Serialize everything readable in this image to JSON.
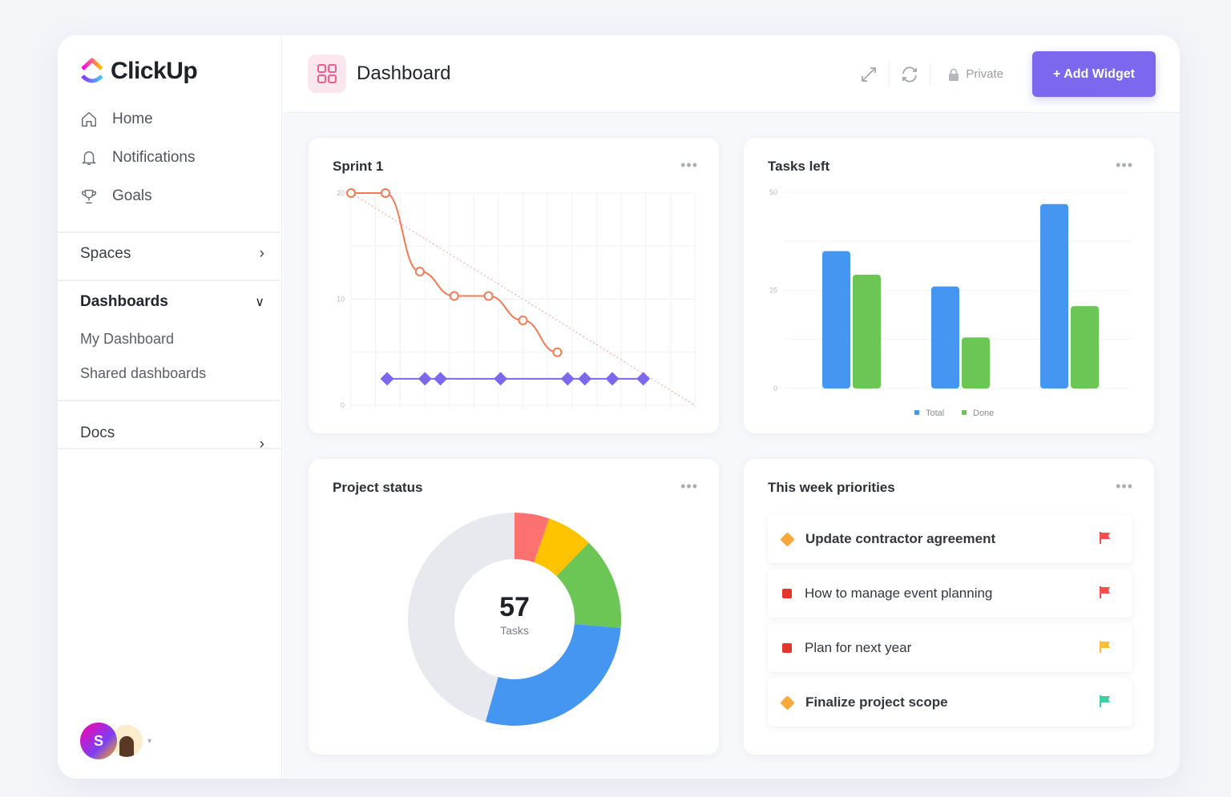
{
  "brand": {
    "name": "ClickUp"
  },
  "sidebar": {
    "nav": [
      {
        "label": "Home",
        "icon": "home-icon"
      },
      {
        "label": "Notifications",
        "icon": "bell-icon"
      },
      {
        "label": "Goals",
        "icon": "trophy-icon"
      }
    ],
    "spaces": "Spaces",
    "dashboards": "Dashboards",
    "dashboard_items": [
      "My Dashboard",
      "Shared dashboards"
    ],
    "docs": "Docs",
    "avatar_initial": "S"
  },
  "header": {
    "title": "Dashboard",
    "private_label": "Private",
    "add_widget": "+ Add Widget"
  },
  "colors": {
    "accent": "#7b68ee",
    "blue": "#4496f0",
    "green": "#6cc655",
    "orange": "#f47a55"
  },
  "widgets": {
    "sprint_title": "Sprint 1",
    "tasks_title": "Tasks left",
    "status_title": "Project status",
    "priorities_title": "This week priorities",
    "more": "•••"
  },
  "chart_data": [
    {
      "type": "line",
      "title": "Sprint 1",
      "ylim": [
        0,
        20
      ],
      "yticks": [
        "0",
        "10",
        "20"
      ],
      "xlim": [
        0,
        10
      ],
      "series": [
        {
          "color": "#f47a55",
          "x": [
            0,
            1,
            2,
            3,
            4,
            5,
            6
          ],
          "y": [
            20,
            20,
            12.6,
            10.3,
            10.3,
            8,
            5
          ]
        },
        {
          "color": "#f47a55",
          "style": "dashed",
          "x": [
            0,
            10
          ],
          "y": [
            20,
            0
          ]
        },
        {
          "color": "#7b68ee",
          "marker": "diamond",
          "x": [
            1.05,
            2.15,
            2.6,
            4.35,
            6.3,
            6.8,
            7.6,
            8.5
          ],
          "y": [
            2.5,
            2.5,
            2.5,
            2.5,
            2.5,
            2.5,
            2.5,
            2.5
          ]
        }
      ]
    },
    {
      "type": "bar",
      "title": "Tasks left",
      "ylim": [
        0,
        50
      ],
      "yticks": [
        "0",
        "25",
        "50"
      ],
      "legend": "bottom",
      "series": [
        {
          "name": "Total",
          "color": "#4496f0",
          "values": [
            35,
            26,
            47
          ]
        },
        {
          "name": "Done",
          "color": "#6cc655",
          "values": [
            29,
            13,
            21
          ]
        }
      ]
    },
    {
      "type": "pie",
      "title": "Project status",
      "center_value": "57",
      "center_label": "Tasks",
      "values": [
        3,
        4,
        8,
        16,
        26
      ],
      "colors": [
        "#fd7171",
        "#ffc300",
        "#6cc655",
        "#4496f0",
        "#e8e9ef"
      ]
    }
  ],
  "priorities": [
    {
      "label": "Update contractor agreement",
      "marker": "diamond",
      "marker_color": "#f9a93a",
      "flag_color": "#f44d4d",
      "bold": true
    },
    {
      "label": "How to manage event planning",
      "marker": "square",
      "marker_color": "#e5332a",
      "flag_color": "#f44d4d",
      "bold": false
    },
    {
      "label": "Plan for next year",
      "marker": "square",
      "marker_color": "#e5332a",
      "flag_color": "#fbbd3c",
      "bold": false
    },
    {
      "label": "Finalize project scope",
      "marker": "diamond",
      "marker_color": "#f9a93a",
      "flag_color": "#3ecfa5",
      "bold": true
    }
  ]
}
